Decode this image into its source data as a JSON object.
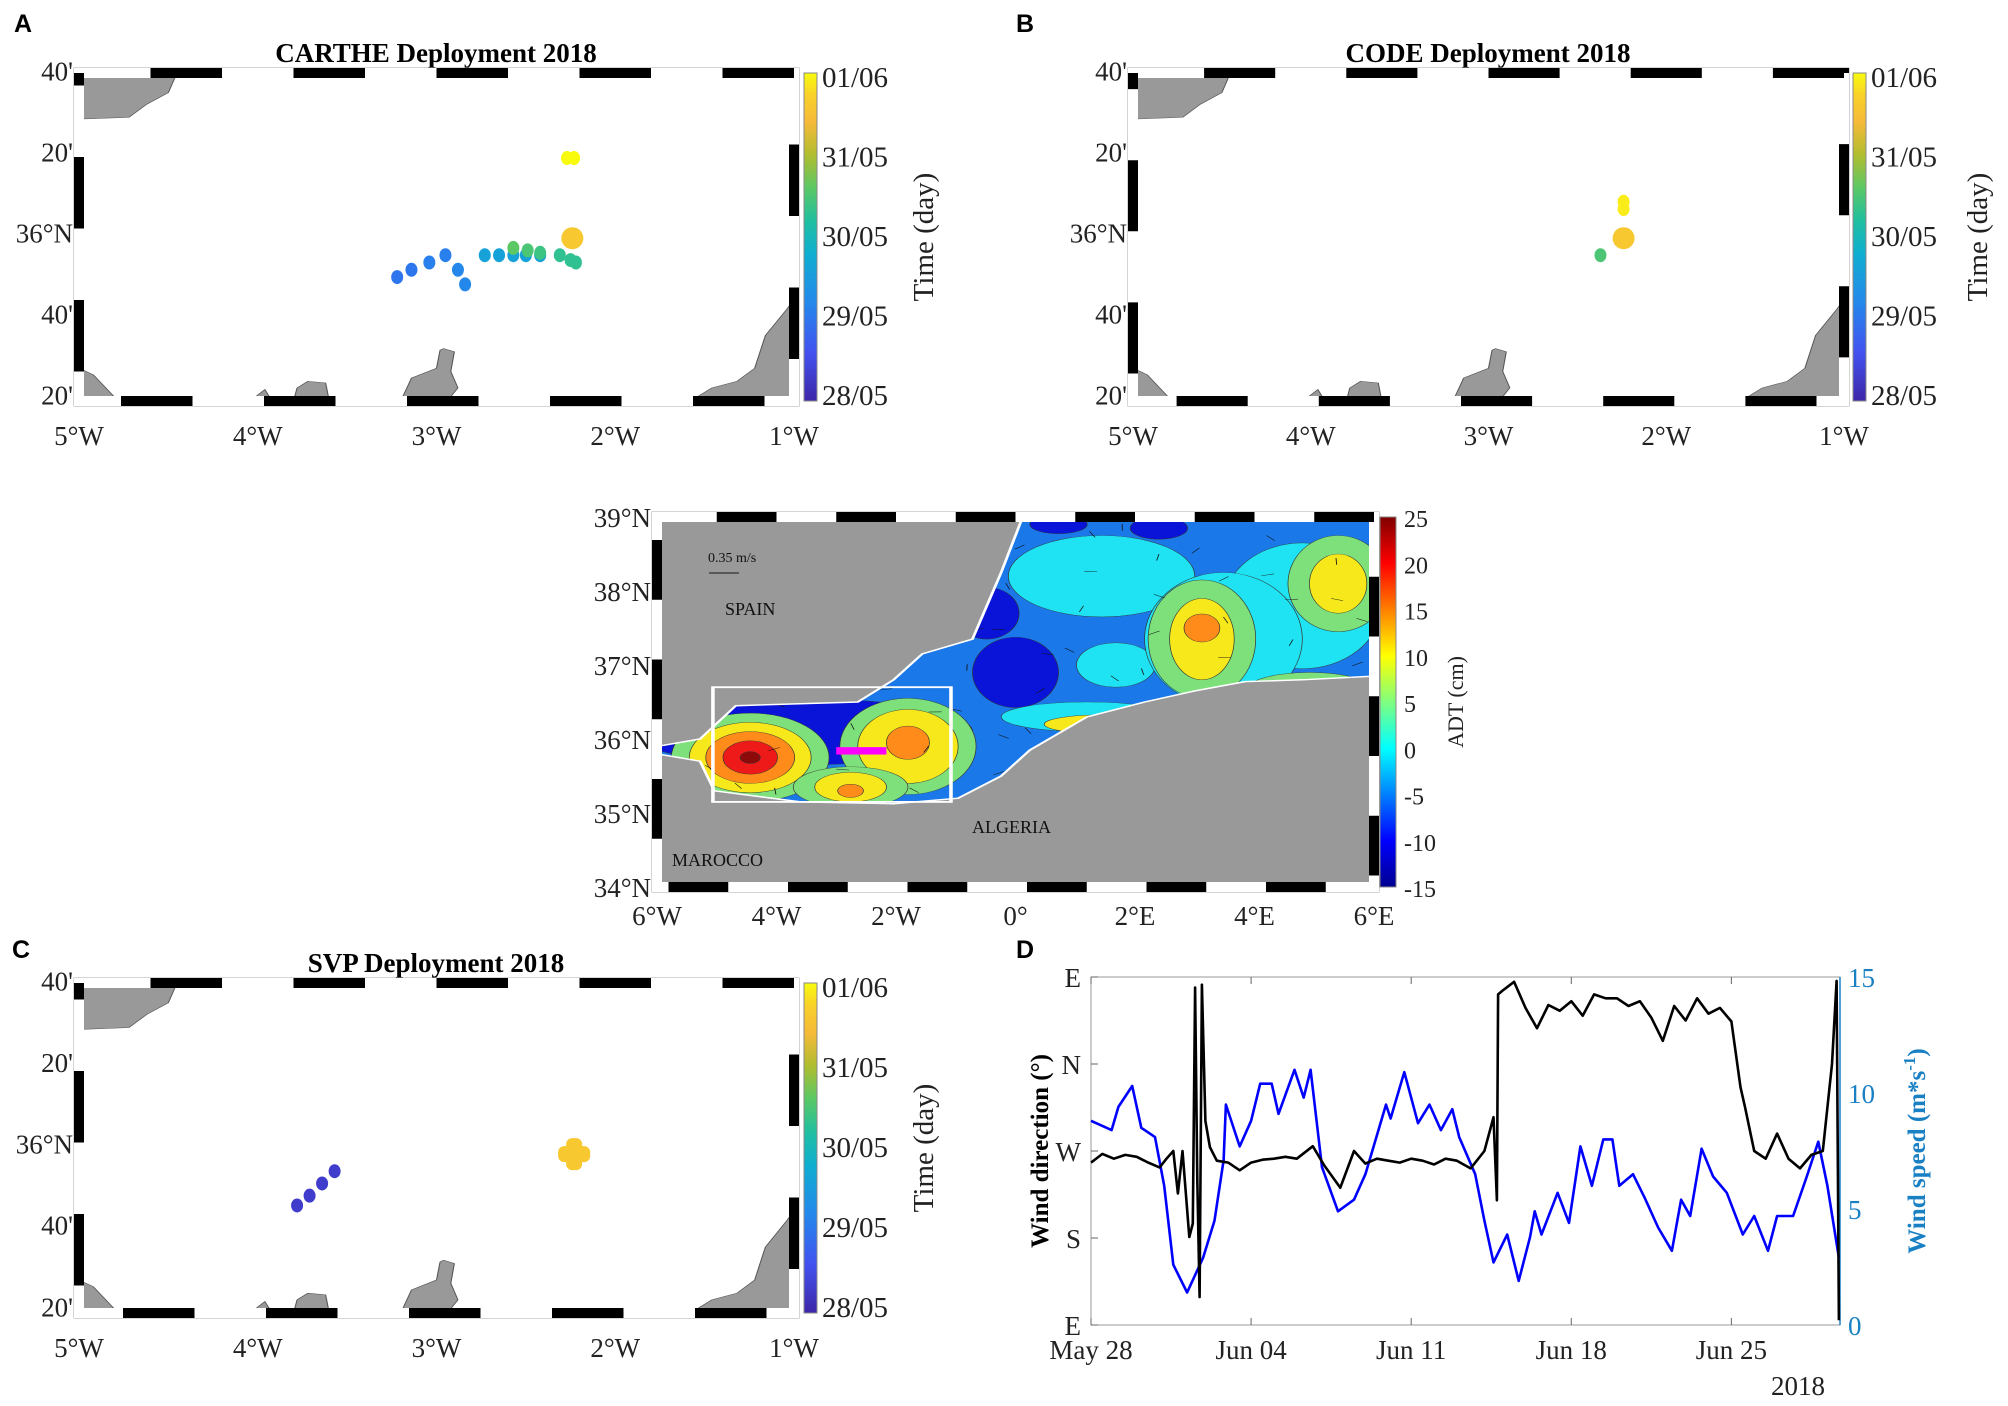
{
  "panels": {
    "A": {
      "letter": "A",
      "title": "CARTHE Deployment 2018"
    },
    "B": {
      "letter": "B",
      "title": "CODE Deployment 2018"
    },
    "C": {
      "letter": "C",
      "title": "SVP Deployment 2018"
    },
    "D": {
      "letter": "D"
    }
  },
  "drift_maps": {
    "lon_range": [
      -5,
      -1
    ],
    "lat_range": [
      35.31,
      36.66
    ],
    "lon_ticks": [
      {
        "v": -5,
        "label": "5°W"
      },
      {
        "v": -4,
        "label": "4°W"
      },
      {
        "v": -3,
        "label": "3°W"
      },
      {
        "v": -2,
        "label": "2°W"
      },
      {
        "v": -1,
        "label": "1°W"
      }
    ],
    "lat_ticks": [
      {
        "v": 36.667,
        "label": "40'"
      },
      {
        "v": 36.333,
        "label": "20'"
      },
      {
        "v": 36.0,
        "label": "36°N"
      },
      {
        "v": 35.667,
        "label": "40'"
      },
      {
        "v": 35.333,
        "label": "20'"
      }
    ],
    "colorbar": {
      "label": "Time (day)",
      "range_days": [
        0,
        4
      ],
      "ticks": [
        "01/06",
        "31/05",
        "30/05",
        "29/05",
        "28/05"
      ]
    }
  },
  "chart_data": [
    {
      "type": "scatter",
      "panel": "A",
      "title": "CARTHE Deployment 2018",
      "color_by": "days since 28/05",
      "points": [
        {
          "lon": -3.22,
          "lat": 35.82,
          "t": 1.0
        },
        {
          "lon": -3.14,
          "lat": 35.85,
          "t": 1.0
        },
        {
          "lon": -3.04,
          "lat": 35.88,
          "t": 1.1
        },
        {
          "lon": -2.95,
          "lat": 35.91,
          "t": 1.1
        },
        {
          "lon": -2.88,
          "lat": 35.85,
          "t": 1.2
        },
        {
          "lon": -2.84,
          "lat": 35.79,
          "t": 1.2
        },
        {
          "lon": -2.73,
          "lat": 35.91,
          "t": 1.6
        },
        {
          "lon": -2.65,
          "lat": 35.91,
          "t": 1.6
        },
        {
          "lon": -2.57,
          "lat": 35.91,
          "t": 1.6
        },
        {
          "lon": -2.5,
          "lat": 35.91,
          "t": 1.6
        },
        {
          "lon": -2.42,
          "lat": 35.91,
          "t": 1.6
        },
        {
          "lon": -2.57,
          "lat": 35.94,
          "t": 2.6
        },
        {
          "lon": -2.49,
          "lat": 35.93,
          "t": 2.5
        },
        {
          "lon": -2.42,
          "lat": 35.92,
          "t": 2.4
        },
        {
          "lon": -2.31,
          "lat": 35.91,
          "t": 2.3
        },
        {
          "lon": -2.25,
          "lat": 35.89,
          "t": 2.3
        },
        {
          "lon": -2.22,
          "lat": 35.88,
          "t": 2.3
        },
        {
          "lon": -2.24,
          "lat": 35.98,
          "t": 3.6,
          "size": "large"
        },
        {
          "lon": -2.27,
          "lat": 36.31,
          "t": 4.0
        },
        {
          "lon": -2.23,
          "lat": 36.31,
          "t": 4.0
        }
      ]
    },
    {
      "type": "scatter",
      "panel": "B",
      "title": "CODE Deployment 2018",
      "color_by": "days since 28/05",
      "points": [
        {
          "lon": -2.24,
          "lat": 36.13,
          "t": 3.9
        },
        {
          "lon": -2.24,
          "lat": 36.1,
          "t": 3.9
        },
        {
          "lon": -2.24,
          "lat": 35.98,
          "t": 3.6,
          "size": "large"
        },
        {
          "lon": -2.37,
          "lat": 35.91,
          "t": 2.5
        }
      ]
    },
    {
      "type": "scatter",
      "panel": "C",
      "title": "SVP Deployment 2018",
      "color_by": "days since 28/05",
      "points": [
        {
          "lon": -3.78,
          "lat": 35.75,
          "t": 0.3
        },
        {
          "lon": -3.71,
          "lat": 35.79,
          "t": 0.3
        },
        {
          "lon": -3.64,
          "lat": 35.84,
          "t": 0.3
        },
        {
          "lon": -3.57,
          "lat": 35.89,
          "t": 0.3
        },
        {
          "lon": -2.23,
          "lat": 35.96,
          "t": 3.6,
          "size": "cross"
        }
      ]
    },
    {
      "type": "heatmap",
      "panel": "ADT map",
      "colorbar": {
        "label": "ADT (cm)",
        "range": [
          -15,
          25
        ],
        "ticks": [
          "25",
          "20",
          "15",
          "10",
          "5",
          "0",
          "-5",
          "-10",
          "-15"
        ]
      },
      "lon_ticks": [
        "6°W",
        "4°W",
        "2°W",
        "0°",
        "2°E",
        "4°E",
        "6°E"
      ],
      "lat_ticks": [
        "39°N",
        "38°N",
        "37°N",
        "36°N",
        "35°N",
        "34°N"
      ],
      "annotations": {
        "scale_arrow": "0.35 m/s",
        "spain": "SPAIN",
        "algeria": "ALGERIA",
        "morocco": "MAROCCO"
      },
      "box": {
        "lon": [
          -5.1,
          -1.0
        ],
        "lat": [
          35.2,
          36.7
        ]
      }
    },
    {
      "type": "line",
      "panel": "D",
      "xlabel": "",
      "x_ticks": [
        "May 28",
        "Jun 04",
        "Jun 11",
        "Jun 18",
        "Jun 25"
      ],
      "x_tick_days": [
        0,
        7,
        14,
        21,
        28
      ],
      "x_year": "2018",
      "x_range_days": [
        0,
        32.75
      ],
      "ylabel_left": "Wind direction (°)",
      "ylabel_right": "Wind speed (m*s-1)",
      "y_left_ticks": [
        {
          "v": 90,
          "label": "E"
        },
        {
          "v": 180,
          "label": "S"
        },
        {
          "v": 270,
          "label": "W"
        },
        {
          "v": 360,
          "label": "N"
        },
        {
          "v": 450,
          "label": "E"
        }
      ],
      "y_left_range": [
        90,
        450
      ],
      "y_right_ticks": [
        "0",
        "5",
        "10",
        "15"
      ],
      "y_right_range": [
        0,
        15
      ],
      "series": [
        {
          "name": "Wind direction",
          "axis": "left",
          "color": "#000000",
          "x": [
            0,
            0.5,
            1,
            1.5,
            2,
            2.5,
            3,
            3.3,
            3.6,
            3.8,
            4.0,
            4.3,
            4.45,
            4.55,
            4.65,
            4.75,
            4.85,
            5.0,
            5.2,
            5.5,
            6,
            6.5,
            7,
            7.5,
            8,
            8.5,
            9,
            9.7,
            10.2,
            10.9,
            11.5,
            12,
            12.5,
            13,
            13.5,
            14,
            14.5,
            15,
            15.5,
            16,
            16.6,
            17.2,
            17.6,
            17.75,
            17.8,
            18,
            18.5,
            19,
            19.5,
            20,
            20.5,
            21,
            21.5,
            22,
            22.5,
            23,
            23.5,
            24,
            24.5,
            25,
            25.5,
            26,
            26.5,
            27,
            27.5,
            28,
            28.4,
            28.6,
            29,
            29.5,
            30,
            30.5,
            31,
            31.5,
            32,
            32.4,
            32.6,
            32.7
          ],
          "y": [
            258,
            267,
            262,
            266,
            264,
            258,
            253,
            262,
            270,
            226,
            270,
            181,
            195,
            439,
            240,
            119,
            442,
            301,
            274,
            260,
            258,
            250,
            258,
            261,
            262,
            264,
            262,
            275,
            255,
            232,
            270,
            257,
            262,
            260,
            258,
            262,
            260,
            256,
            262,
            260,
            252,
            270,
            305,
            219,
            432,
            436,
            445,
            418,
            397,
            421,
            415,
            425,
            410,
            432,
            428,
            428,
            420,
            425,
            408,
            384,
            420,
            405,
            428,
            412,
            418,
            404,
            336,
            315,
            270,
            262,
            288,
            262,
            252,
            266,
            270,
            360,
            446,
            95
          ]
        },
        {
          "name": "Wind speed",
          "axis": "right",
          "color": "#0000ff",
          "x": [
            0,
            0.9,
            1.2,
            1.8,
            2.2,
            2.8,
            3.2,
            3.6,
            4.2,
            4.9,
            5.4,
            5.8,
            5.9,
            6.5,
            7.0,
            7.4,
            7.9,
            8.2,
            8.9,
            9.3,
            9.6,
            10.1,
            10.8,
            11.5,
            12.0,
            12.9,
            13.1,
            13.7,
            14.3,
            14.8,
            15.3,
            15.8,
            16.1,
            16.8,
            17.2,
            17.6,
            18.2,
            18.7,
            19.2,
            19.4,
            19.7,
            20.4,
            20.9,
            21.4,
            21.9,
            22.4,
            22.8,
            23.1,
            23.7,
            24.2,
            24.8,
            25.4,
            25.8,
            26.2,
            26.7,
            27.2,
            27.8,
            28.5,
            29.0,
            29.6,
            30.0,
            30.7,
            31.3,
            31.8,
            32.2,
            32.7
          ],
          "y": [
            8.8,
            8.4,
            9.4,
            10.3,
            8.5,
            8.1,
            6.0,
            2.6,
            1.4,
            2.9,
            4.5,
            7.1,
            9.5,
            7.7,
            8.8,
            10.4,
            10.4,
            9.1,
            11.0,
            9.8,
            11.0,
            6.8,
            4.9,
            5.4,
            6.5,
            9.5,
            8.9,
            10.9,
            8.7,
            9.5,
            8.4,
            9.3,
            8.1,
            6.5,
            4.5,
            2.7,
            3.9,
            1.9,
            3.8,
            4.9,
            3.9,
            5.7,
            4.4,
            7.7,
            6.0,
            8.0,
            8.0,
            6.0,
            6.5,
            5.5,
            4.2,
            3.2,
            5.4,
            4.7,
            7.6,
            6.4,
            5.7,
            3.9,
            4.7,
            3.2,
            4.7,
            4.7,
            6.4,
            7.9,
            6.0,
            2.9
          ]
        }
      ]
    }
  ],
  "colors": {
    "land": "#999999",
    "frame_dark": "#000000",
    "speed_axis": "#1a80c4",
    "box": "#ffffff",
    "section": "#ff00ff"
  }
}
